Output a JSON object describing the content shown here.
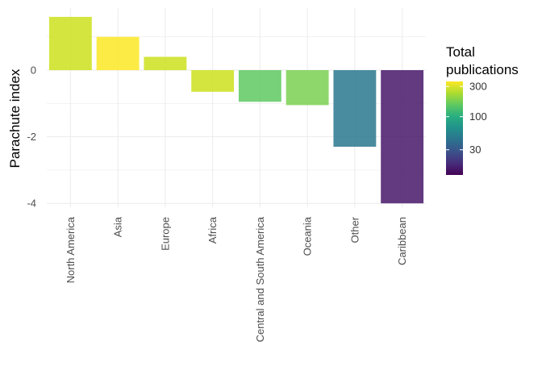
{
  "chart_data": {
    "type": "bar",
    "ylabel": "Parachute index",
    "xlabel": "",
    "categories": [
      "North America",
      "Asia",
      "Europe",
      "Africa",
      "Central and South America",
      "Oceania",
      "Other",
      "Caribbean"
    ],
    "values": [
      1.6,
      1.0,
      0.4,
      -0.65,
      -0.95,
      -1.05,
      -2.3,
      -4.0
    ],
    "total_publications": [
      220,
      330,
      240,
      220,
      120,
      150,
      55,
      15
    ],
    "colors": [
      "#cde11d",
      "#fde725",
      "#cde11d",
      "#cde11d",
      "#5ec962",
      "#7ad151",
      "#2a788e",
      "#48186a"
    ],
    "ylim": [
      -4.1,
      1.75
    ],
    "yticks": [
      -4,
      -2,
      0
    ],
    "ytick_labels": [
      "-4",
      "-2",
      "0"
    ],
    "grid": true,
    "legend": {
      "title_line1": "Total",
      "title_line2": "publications",
      "placement": "right",
      "ticks": [
        300,
        100,
        30
      ],
      "tick_labels": [
        "300",
        "100",
        "30"
      ],
      "range": [
        12,
        360
      ],
      "scale": "log",
      "colormap": [
        "#440154",
        "#472d7b",
        "#3b528b",
        "#2c728e",
        "#21918c",
        "#28ae80",
        "#5ec962",
        "#addc30",
        "#fde725"
      ]
    }
  }
}
